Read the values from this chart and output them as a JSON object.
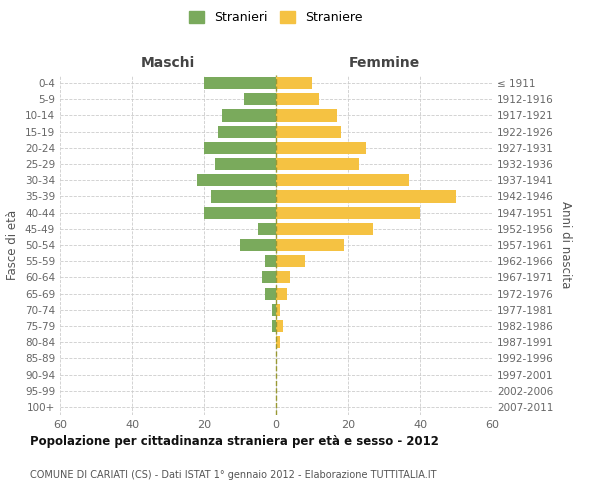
{
  "age_groups": [
    "0-4",
    "5-9",
    "10-14",
    "15-19",
    "20-24",
    "25-29",
    "30-34",
    "35-39",
    "40-44",
    "45-49",
    "50-54",
    "55-59",
    "60-64",
    "65-69",
    "70-74",
    "75-79",
    "80-84",
    "85-89",
    "90-94",
    "95-99",
    "100+"
  ],
  "birth_years": [
    "2007-2011",
    "2002-2006",
    "1997-2001",
    "1992-1996",
    "1987-1991",
    "1982-1986",
    "1977-1981",
    "1972-1976",
    "1967-1971",
    "1962-1966",
    "1957-1961",
    "1952-1956",
    "1947-1951",
    "1942-1946",
    "1937-1941",
    "1932-1936",
    "1927-1931",
    "1922-1926",
    "1917-1921",
    "1912-1916",
    "≤ 1911"
  ],
  "males": [
    20,
    9,
    15,
    16,
    20,
    17,
    22,
    18,
    20,
    5,
    10,
    3,
    4,
    3,
    1,
    1,
    0,
    0,
    0,
    0,
    0
  ],
  "females": [
    10,
    12,
    17,
    18,
    25,
    23,
    37,
    50,
    40,
    27,
    19,
    8,
    4,
    3,
    1,
    2,
    1,
    0,
    0,
    0,
    0
  ],
  "male_color": "#7aaa5c",
  "female_color": "#f5c242",
  "grid_color": "#cccccc",
  "center_line_color": "#999933",
  "title": "Popolazione per cittadinanza straniera per età e sesso - 2012",
  "subtitle": "COMUNE DI CARIATI (CS) - Dati ISTAT 1° gennaio 2012 - Elaborazione TUTTITALIA.IT",
  "xlabel_left": "Maschi",
  "xlabel_right": "Femmine",
  "ylabel_left": "Fasce di età",
  "ylabel_right": "Anni di nascita",
  "legend_male": "Stranieri",
  "legend_female": "Straniere",
  "xlim": 60,
  "bar_height": 0.75
}
